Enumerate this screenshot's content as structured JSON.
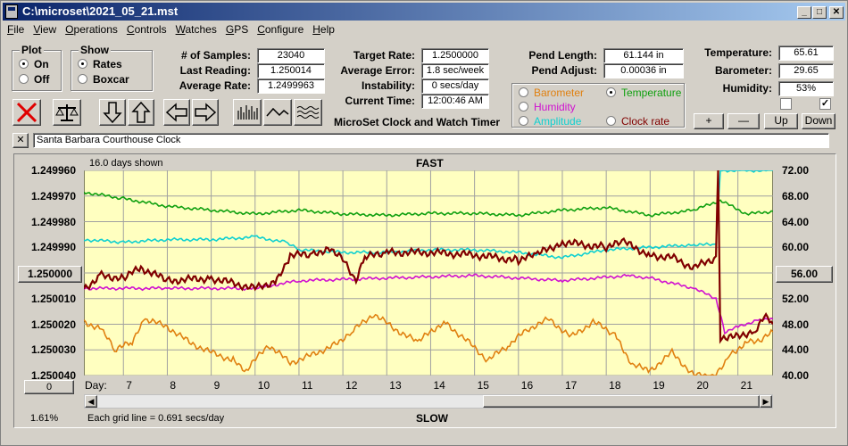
{
  "window": {
    "title": "C:\\microset\\2021_05_21.mst"
  },
  "menu": [
    "File",
    "View",
    "Operations",
    "Controls",
    "Watches",
    "GPS",
    "Configure",
    "Help"
  ],
  "plot_group": {
    "title": "Plot",
    "on": "On",
    "off": "Off"
  },
  "show_group": {
    "title": "Show",
    "rates": "Rates",
    "boxcar": "Boxcar"
  },
  "stats": {
    "samples_label": "# of Samples:",
    "samples": "23040",
    "last_label": "Last Reading:",
    "last": "1.250014",
    "avg_label": "Average Rate:",
    "avg": "1.2499963",
    "target_label": "Target Rate:",
    "target": "1.2500000",
    "avgerr_label": "Average Error:",
    "avgerr": "1.8 sec/week",
    "instab_label": "Instability:",
    "instab": "0 secs/day",
    "time_label": "Current Time:",
    "time": "12:00:46 AM",
    "pendlen_label": "Pend Length:",
    "pendlen": "61.144 in",
    "pendadj_label": "Pend Adjust:",
    "pendadj": "0.00036 in",
    "temp_label": "Temperature:",
    "temp": "65.61",
    "baro_label": "Barometer:",
    "baro": "29.65",
    "hum_label": "Humidity:",
    "hum": "53%"
  },
  "app_caption": "MicroSet Clock and Watch Timer",
  "sensor_options": {
    "barometer": "Barometer",
    "temperature": "Temperature",
    "humidity": "Humidity",
    "amplitude": "Amplitude",
    "clock_rate": "Clock rate",
    "colors": {
      "barometer": "#e08010",
      "temperature": "#10a010",
      "humidity": "#d010d0",
      "amplitude": "#10d0d0",
      "clock_rate": "#800000"
    }
  },
  "adjust_buttons": {
    "plus": "+",
    "minus": "—",
    "up": "Up",
    "down": "Down"
  },
  "clock_name": "Santa Barbara Courthouse Clock",
  "close_x": "✕",
  "chart_header": {
    "days_shown": "16.0 days shown",
    "fast": "FAST",
    "slow": "SLOW",
    "day_label": "Day:",
    "grid_note": "Each grid line = 0.691 secs/day",
    "percent": "1.61%",
    "left_center": "1.250000",
    "right_center": "56.00",
    "bottom_left_btn": "0"
  },
  "chart_data": {
    "type": "line",
    "x_label": "Day:",
    "x_range": [
      6.1,
      21.8
    ],
    "x_ticks": [
      7,
      8,
      9,
      10,
      11,
      12,
      13,
      14,
      15,
      16,
      17,
      18,
      19,
      20,
      21
    ],
    "y_left_ticks": [
      "1.249960",
      "1.249970",
      "1.249980",
      "1.249990",
      "1.250000",
      "1.250010",
      "1.250020",
      "1.250030",
      "1.250040"
    ],
    "y_left_range": [
      1.24996,
      1.25004
    ],
    "y_left_inverted": true,
    "y_right_ticks": [
      "72.00",
      "68.00",
      "64.00",
      "60.00",
      "56.00",
      "52.00",
      "48.00",
      "44.00",
      "40.00"
    ],
    "y_right_range": [
      40,
      72
    ],
    "grid": true,
    "series": [
      {
        "color": "#10a010",
        "axis": "right",
        "points": [
          [
            6.1,
            68.6
          ],
          [
            7,
            67.6
          ],
          [
            8,
            66.4
          ],
          [
            9,
            65.8
          ],
          [
            10,
            65.2
          ],
          [
            11,
            65.8
          ],
          [
            12,
            65.2
          ],
          [
            13,
            65.0
          ],
          [
            14,
            65.3
          ],
          [
            15,
            65.3
          ],
          [
            16,
            65.0
          ],
          [
            17,
            65.8
          ],
          [
            18,
            66.2
          ],
          [
            19,
            65.0
          ],
          [
            20,
            65.8
          ],
          [
            20.6,
            67.3
          ],
          [
            21.2,
            65.2
          ],
          [
            21.8,
            65.6
          ]
        ]
      },
      {
        "color": "#10d0d0",
        "axis": "left",
        "points": [
          [
            6.1,
            1.249987
          ],
          [
            7,
            1.249988
          ],
          [
            8,
            1.249987
          ],
          [
            9,
            1.249987
          ],
          [
            10,
            1.249986
          ],
          [
            10.7,
            1.249988
          ],
          [
            11,
            1.249991
          ],
          [
            12,
            1.249992
          ],
          [
            13,
            1.249992
          ],
          [
            14,
            1.249991
          ],
          [
            15,
            1.249991
          ],
          [
            16,
            1.249992
          ],
          [
            17,
            1.249994
          ],
          [
            18,
            1.249991
          ],
          [
            19,
            1.24999
          ],
          [
            20,
            1.249989
          ],
          [
            20.5,
            1.249989
          ],
          [
            20.6,
            1.24996
          ],
          [
            21.8,
            1.24996
          ]
        ]
      },
      {
        "color": "#d010d0",
        "axis": "left",
        "points": [
          [
            6.1,
            1.250006
          ],
          [
            8,
            1.250006
          ],
          [
            10,
            1.250006
          ],
          [
            11,
            1.250003
          ],
          [
            13,
            1.250002
          ],
          [
            15,
            1.250001
          ],
          [
            17,
            1.250003
          ],
          [
            18.5,
            1.250001
          ],
          [
            19,
            1.250002
          ],
          [
            20,
            1.250006
          ],
          [
            20.5,
            1.25001
          ],
          [
            20.7,
            1.250023
          ],
          [
            21,
            1.250021
          ],
          [
            21.5,
            1.250018
          ],
          [
            21.8,
            1.250018
          ]
        ]
      },
      {
        "color": "#800000",
        "axis": "left",
        "points": [
          [
            6.1,
            1.250006
          ],
          [
            6.5,
            1.250001
          ],
          [
            7,
            1.250002
          ],
          [
            7.4,
            1.249998
          ],
          [
            8,
            1.250003
          ],
          [
            9,
            1.250002
          ],
          [
            9.5,
            1.250004
          ],
          [
            10,
            1.250006
          ],
          [
            10.5,
            1.250003
          ],
          [
            10.8,
            1.249993
          ],
          [
            11.3,
            1.249993
          ],
          [
            11.7,
            1.24999
          ],
          [
            12,
            1.249995
          ],
          [
            12.3,
            1.250003
          ],
          [
            12.5,
            1.249994
          ],
          [
            13,
            1.249992
          ],
          [
            14,
            1.249992
          ],
          [
            15,
            1.249993
          ],
          [
            16,
            1.249995
          ],
          [
            16.4,
            1.249993
          ],
          [
            17,
            1.249988
          ],
          [
            18,
            1.24999
          ],
          [
            18.4,
            1.249988
          ],
          [
            19,
            1.249993
          ],
          [
            19.5,
            1.249994
          ],
          [
            20,
            1.249998
          ],
          [
            20.5,
            1.249994
          ],
          [
            20.55,
            1.24996
          ],
          [
            20.6,
            1.250025
          ],
          [
            21,
            1.250025
          ],
          [
            21.4,
            1.250022
          ],
          [
            21.6,
            1.250017
          ],
          [
            21.8,
            1.25002
          ]
        ]
      },
      {
        "color": "#e08010",
        "axis": "left",
        "points": [
          [
            6.1,
            1.250019
          ],
          [
            6.5,
            1.250022
          ],
          [
            6.8,
            1.25003
          ],
          [
            7.2,
            1.250027
          ],
          [
            7.5,
            1.250018
          ],
          [
            8,
            1.250021
          ],
          [
            8.5,
            1.250027
          ],
          [
            9,
            1.250031
          ],
          [
            9.5,
            1.250034
          ],
          [
            9.8,
            1.250038
          ],
          [
            10.3,
            1.250028
          ],
          [
            10.8,
            1.250035
          ],
          [
            11.3,
            1.250032
          ],
          [
            11.8,
            1.250028
          ],
          [
            12.2,
            1.250023
          ],
          [
            12.7,
            1.250016
          ],
          [
            13.2,
            1.250022
          ],
          [
            13.7,
            1.250027
          ],
          [
            14.3,
            1.250019
          ],
          [
            14.8,
            1.250026
          ],
          [
            15.3,
            1.250034
          ],
          [
            15.8,
            1.250028
          ],
          [
            16.2,
            1.250022
          ],
          [
            16.7,
            1.250018
          ],
          [
            17.2,
            1.250025
          ],
          [
            17.7,
            1.250019
          ],
          [
            18.2,
            1.250024
          ],
          [
            18.6,
            1.250036
          ],
          [
            19,
            1.250038
          ],
          [
            19.5,
            1.250031
          ],
          [
            20,
            1.25004
          ],
          [
            20.5,
            1.25004
          ],
          [
            20.8,
            1.250032
          ],
          [
            21.2,
            1.250027
          ],
          [
            21.5,
            1.250026
          ],
          [
            21.8,
            1.250023
          ]
        ]
      }
    ]
  }
}
